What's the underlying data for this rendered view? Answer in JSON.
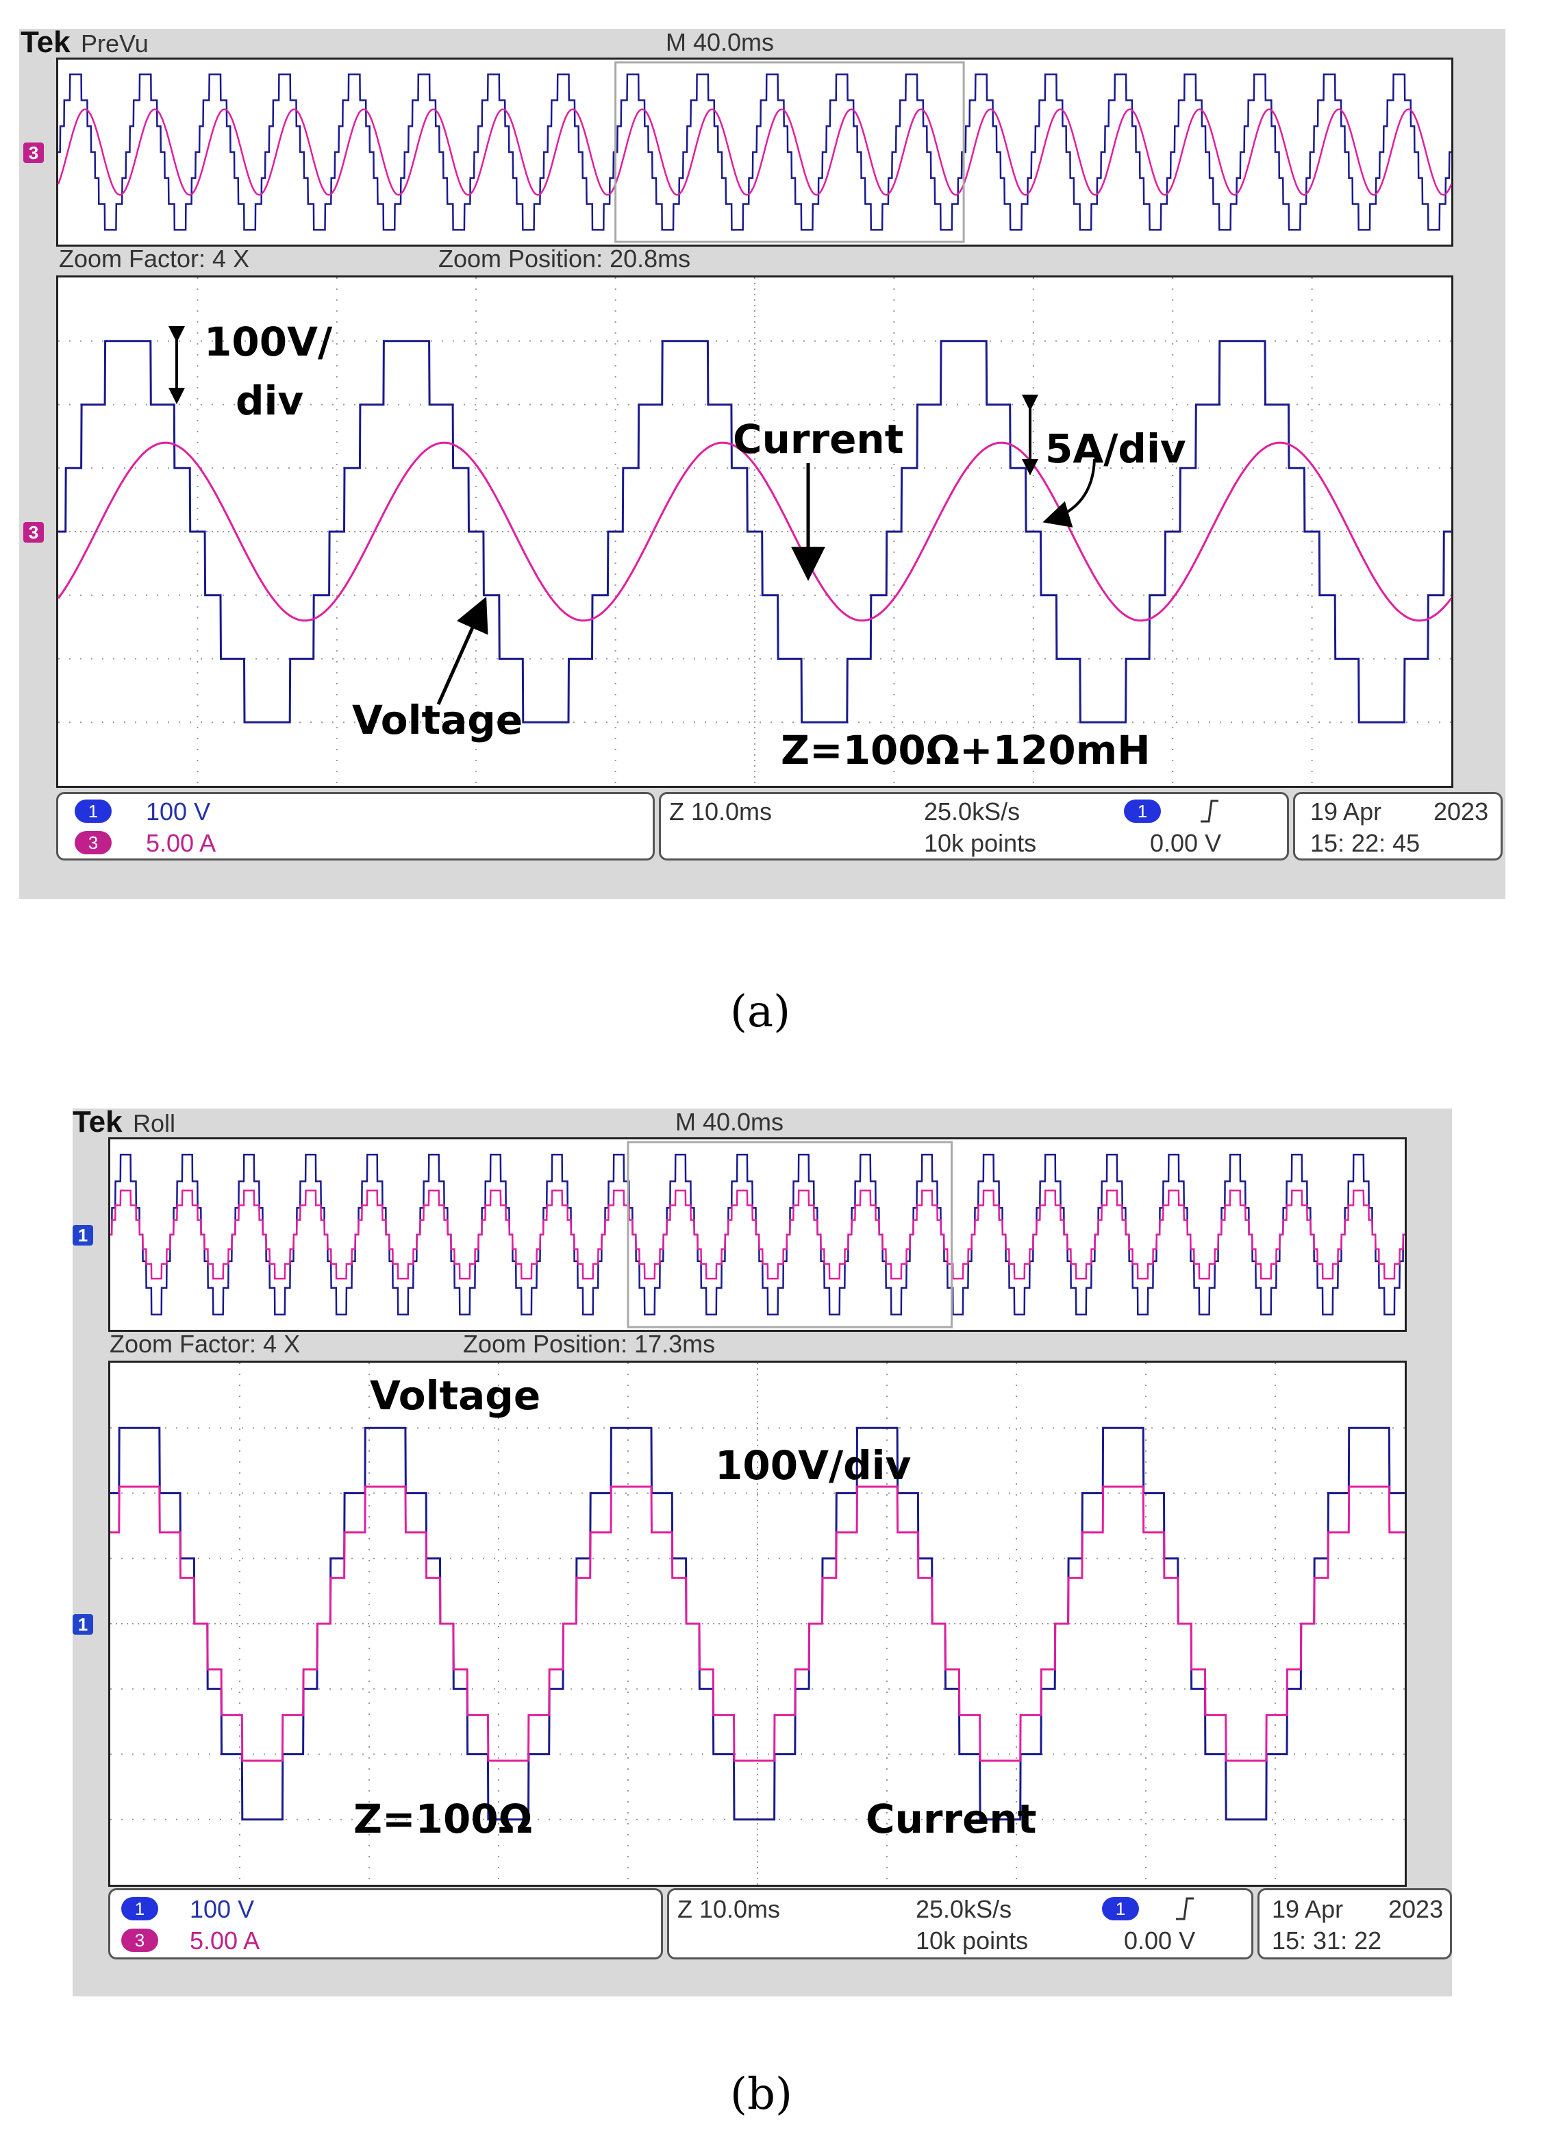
{
  "colors": {
    "voltage": "#1a1a8f",
    "current": "#e0209e",
    "bezel": "#d9d9d9",
    "trigger": "#f0a020"
  },
  "icons": [
    "channel-1-marker-icon",
    "channel-3-marker-icon",
    "trigger-marker-icon",
    "rising-edge-icon",
    "arrow-icon"
  ],
  "scopes": [
    {
      "caption": "(a)",
      "header": {
        "brand": "Tek",
        "mode": "PreVu",
        "timebase": "M 40.0ms"
      },
      "zoom": {
        "factor": "Zoom Factor: 4 X",
        "position": "Zoom Position: 20.8ms"
      },
      "ref_marker": "3",
      "status": {
        "ch1_num": "1",
        "ch1_scale": "100 V",
        "ch3_num": "3",
        "ch3_scale": "5.00 A",
        "zoom_time": "Z 10.0ms",
        "sample_rate": "25.0kS/s",
        "record": "10k points",
        "trig_ch": "1",
        "trig_level": "0.00 V",
        "date": "19 Apr",
        "year": "2023",
        "time": "15: 22: 45"
      },
      "annotations": {
        "volt_div_1": "100V/",
        "volt_div_2": "div",
        "current": "Current",
        "amp_div": "5A/div",
        "voltage": "Voltage",
        "load": "Z=100Ω+120mH"
      }
    },
    {
      "caption": "(b)",
      "header": {
        "brand": "Tek",
        "mode": "Roll",
        "timebase": "M 40.0ms"
      },
      "zoom": {
        "factor": "Zoom Factor: 4 X",
        "position": "Zoom Position: 17.3ms"
      },
      "ref_marker": "1",
      "status": {
        "ch1_num": "1",
        "ch1_scale": "100 V",
        "ch3_num": "3",
        "ch3_scale": "5.00 A",
        "zoom_time": "Z 10.0ms",
        "sample_rate": "25.0kS/s",
        "record": "10k points",
        "trig_ch": "1",
        "trig_level": "0.00 V",
        "date": "19 Apr",
        "year": "2023",
        "time": "15: 31: 22"
      },
      "annotations": {
        "voltage": "Voltage",
        "volt_div": "100V/div",
        "load": "Z=100Ω",
        "current": "Current"
      }
    }
  ],
  "chart_data": [
    {
      "type": "line",
      "x_unit": "ms",
      "y_units": {
        "voltage": "V",
        "current": "A"
      },
      "voltage_scale": "100 V/div",
      "current_scale": "5.00 A/div",
      "zoom_window_ms": 100,
      "period_ms": 20,
      "series": [
        {
          "name": "Voltage",
          "waveform": "seven-level staircase",
          "levels_V": [
            -300,
            -200,
            -100,
            0,
            100,
            200,
            300
          ],
          "start_phase_ms": 0
        },
        {
          "name": "Current",
          "waveform": "sinusoid",
          "peak_A": 7.0,
          "lag_ms": 2.7
        }
      ]
    },
    {
      "type": "line",
      "x_unit": "ms",
      "y_units": {
        "voltage": "V",
        "current": "A"
      },
      "voltage_scale": "100 V/div",
      "current_scale": "5.00 A/div",
      "zoom_window_ms": 100,
      "period_ms": 19,
      "series": [
        {
          "name": "Voltage",
          "waveform": "seven-level staircase",
          "levels_V": [
            -300,
            -200,
            -100,
            0,
            100,
            200,
            300
          ],
          "start_phase_ms": -2.5
        },
        {
          "name": "Current",
          "waveform": "seven-level staircase (in phase)",
          "peak_A": 10.5,
          "lag_ms": 0
        }
      ]
    }
  ]
}
